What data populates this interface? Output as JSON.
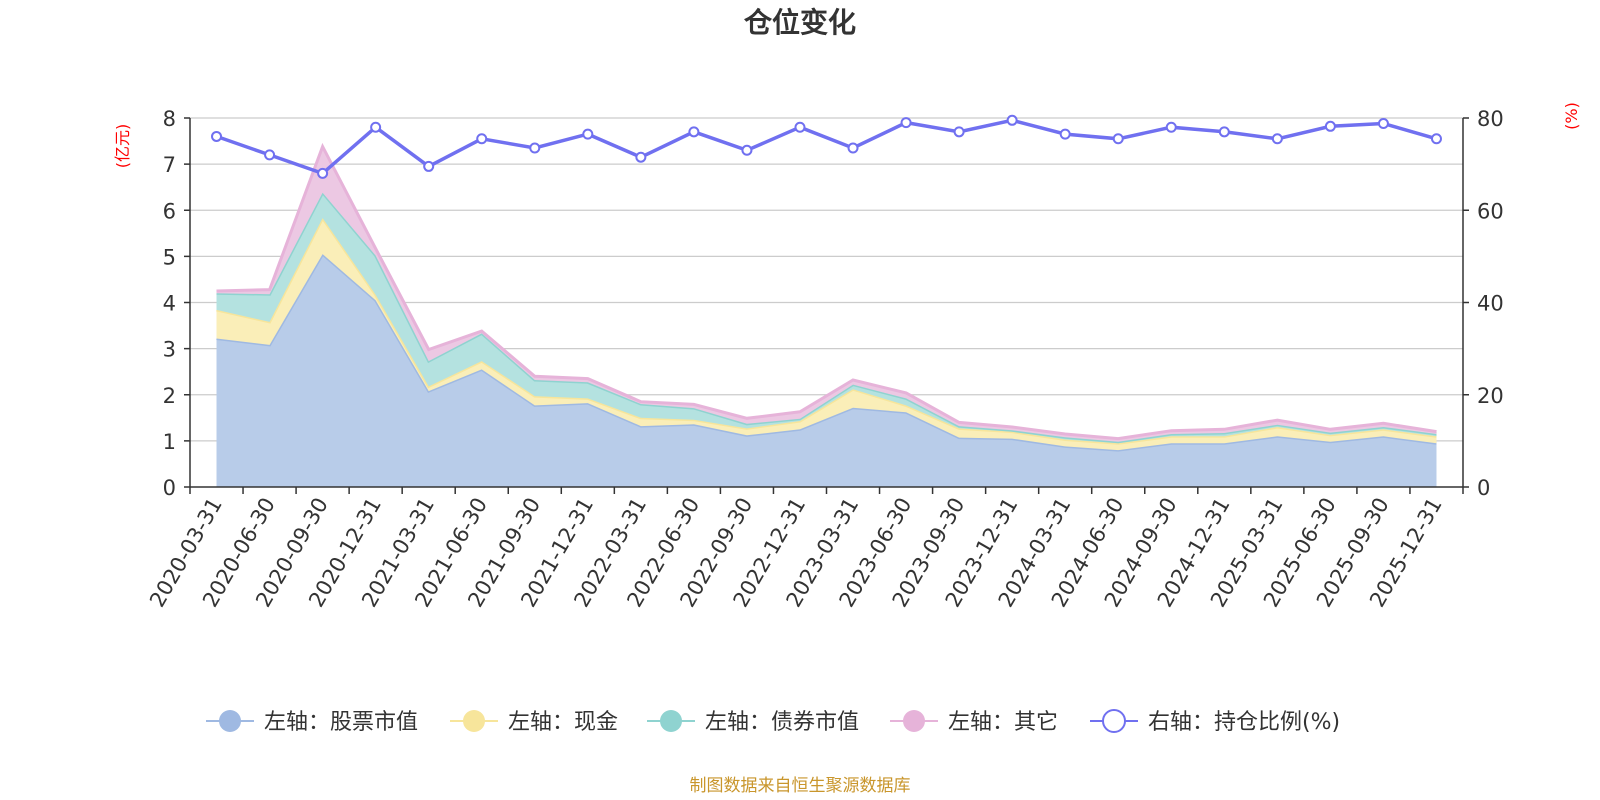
{
  "chart_data": {
    "type": "area",
    "title": "仓位变化",
    "left_axis": {
      "unit_label": "(亿元)",
      "ticks": [
        "0",
        "1",
        "2",
        "3",
        "4",
        "5",
        "6",
        "7",
        "8"
      ],
      "range": [
        0,
        8
      ]
    },
    "right_axis": {
      "unit_label": "(%)",
      "ticks": [
        "0",
        "20",
        "40",
        "60",
        "80"
      ],
      "range": [
        0,
        80
      ]
    },
    "categories": [
      "2020-03-31",
      "2020-06-30",
      "2020-09-30",
      "2020-12-31",
      "2021-03-31",
      "2021-06-30",
      "2021-09-30",
      "2021-12-31",
      "2022-03-31",
      "2022-06-30",
      "2022-09-30",
      "2022-12-31",
      "2023-03-31",
      "2023-06-30",
      "2023-09-30",
      "2023-12-31",
      "2024-03-31",
      "2024-06-30",
      "2024-09-30",
      "2024-12-31",
      "2025-03-31",
      "2025-06-30",
      "2025-09-30",
      "2025-12-31"
    ],
    "series": [
      {
        "name": "左轴：股票市值",
        "axis": "left",
        "stack": true,
        "color": "#9fb9e2",
        "fill": "#b8cce9",
        "values": [
          3.22,
          3.08,
          5.05,
          4.05,
          2.08,
          2.55,
          1.77,
          1.82,
          1.32,
          1.36,
          1.12,
          1.25,
          1.72,
          1.62,
          1.07,
          1.05,
          0.88,
          0.8,
          0.95,
          0.95,
          1.1,
          0.98,
          1.1,
          0.95
        ]
      },
      {
        "name": "左轴：现金",
        "axis": "left",
        "stack": true,
        "color": "#f7e59b",
        "fill": "#faeeb8",
        "values": [
          0.62,
          0.5,
          0.78,
          0.12,
          0.1,
          0.18,
          0.2,
          0.1,
          0.18,
          0.1,
          0.15,
          0.18,
          0.4,
          0.15,
          0.2,
          0.15,
          0.15,
          0.15,
          0.15,
          0.15,
          0.2,
          0.15,
          0.15,
          0.15
        ]
      },
      {
        "name": "左轴：债券市值",
        "axis": "left",
        "stack": true,
        "color": "#8fd3d0",
        "fill": "#b4e2e0",
        "values": [
          0.36,
          0.6,
          0.55,
          0.85,
          0.55,
          0.6,
          0.35,
          0.35,
          0.3,
          0.25,
          0.1,
          0.05,
          0.1,
          0.15,
          0.05,
          0.03,
          0.05,
          0.03,
          0.05,
          0.07,
          0.05,
          0.05,
          0.05,
          0.05
        ]
      },
      {
        "name": "左轴：其它",
        "axis": "left",
        "stack": true,
        "color": "#e6b3d9",
        "fill": "#ecc8e3",
        "values": [
          0.05,
          0.1,
          1.0,
          0.15,
          0.25,
          0.05,
          0.08,
          0.08,
          0.05,
          0.08,
          0.12,
          0.15,
          0.1,
          0.12,
          0.08,
          0.07,
          0.07,
          0.07,
          0.07,
          0.08,
          0.1,
          0.07,
          0.08,
          0.05
        ]
      },
      {
        "name": "右轴：持仓比例(%)",
        "axis": "right",
        "type": "line",
        "color": "#7070f0",
        "values": [
          76,
          72,
          68,
          78,
          69.5,
          75.5,
          73.5,
          76.5,
          71.5,
          77,
          73,
          78,
          73.5,
          79,
          77,
          79.5,
          76.5,
          75.5,
          78,
          77,
          75.5,
          78.2,
          78.8,
          75.5
        ]
      }
    ],
    "source": "制图数据来自恒生聚源数据库"
  }
}
